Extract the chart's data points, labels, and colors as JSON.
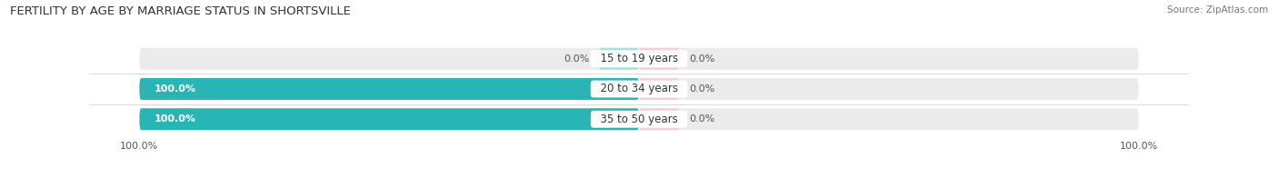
{
  "title": "FERTILITY BY AGE BY MARRIAGE STATUS IN SHORTSVILLE",
  "source": "Source: ZipAtlas.com",
  "categories": [
    "15 to 19 years",
    "20 to 34 years",
    "35 to 50 years"
  ],
  "married_values": [
    0.0,
    100.0,
    100.0
  ],
  "unmarried_values": [
    0.0,
    0.0,
    0.0
  ],
  "married_color": "#2ab5b5",
  "unmarried_color": "#f4a8be",
  "married_color_light": "#a8dede",
  "unmarried_color_light": "#f9cdd8",
  "bar_bg_color": "#ebebeb",
  "bar_height": 0.72,
  "title_fontsize": 9.5,
  "source_fontsize": 7.5,
  "label_fontsize": 8.5,
  "value_fontsize": 8,
  "tick_fontsize": 8,
  "legend_fontsize": 8.5,
  "background_color": "#ffffff",
  "xlim": 110
}
